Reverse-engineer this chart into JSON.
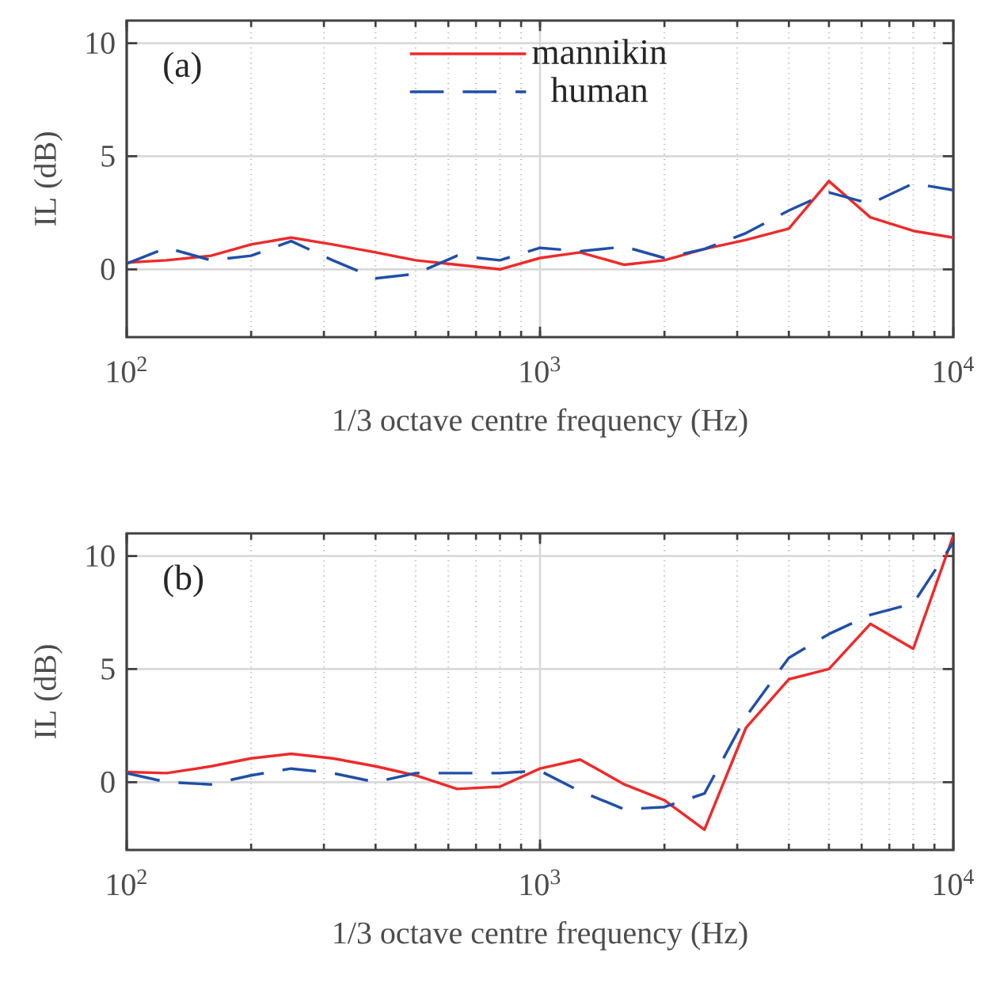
{
  "chart_data": [
    {
      "type": "line",
      "x": [
        100,
        125,
        160,
        200,
        250,
        315,
        400,
        500,
        630,
        800,
        1000,
        1250,
        1600,
        2000,
        2500,
        3150,
        4000,
        5000,
        6300,
        8000,
        10000
      ],
      "series": [
        {
          "name": "mannikin",
          "color": "#ee2a2a",
          "line_style": "solid",
          "values": [
            0.3,
            0.4,
            0.6,
            1.1,
            1.4,
            1.1,
            0.75,
            0.4,
            0.2,
            0,
            0.5,
            0.75,
            0.2,
            0.4,
            0.9,
            1.3,
            1.8,
            3.9,
            2.3,
            1.7,
            1.4
          ]
        },
        {
          "name": "human",
          "color": "#1f4fa8",
          "line_style": "dashed",
          "values": [
            0.25,
            0.95,
            0.4,
            0.6,
            1.25,
            0.4,
            -0.4,
            -0.2,
            0.6,
            0.4,
            0.95,
            0.8,
            1.0,
            0.5,
            0.9,
            1.6,
            2.6,
            3.4,
            2.9,
            3.8,
            3.5
          ]
        }
      ],
      "xlabel": "1/3 octave centre frequency (Hz)",
      "ylabel": "IL (dB)",
      "log": "x",
      "xlim": [
        100,
        10000
      ],
      "ylim": [
        -3,
        11
      ],
      "xticks": [
        {
          "value": 100,
          "label": "10$^{2}$"
        },
        {
          "value": 1000,
          "label": "10$^{3}$"
        },
        {
          "value": 10000,
          "label": "10$^{4}$"
        }
      ],
      "yticks": [
        0,
        5,
        10
      ],
      "grid": true,
      "legend": "top",
      "annotations": [
        "(a)"
      ]
    },
    {
      "type": "line",
      "x": [
        100,
        125,
        160,
        200,
        250,
        315,
        400,
        500,
        630,
        800,
        1000,
        1250,
        1600,
        2000,
        2500,
        3150,
        4000,
        5000,
        6300,
        8000,
        10000
      ],
      "series": [
        {
          "color": "#ee2a2a",
          "line_style": "solid",
          "values": [
            0.45,
            0.4,
            0.7,
            1.05,
            1.25,
            1.05,
            0.7,
            0.3,
            -0.3,
            -0.2,
            0.6,
            1.0,
            -0.1,
            -0.8,
            -2.1,
            2.4,
            4.55,
            5.0,
            7.0,
            5.9,
            10.9
          ]
        },
        {
          "color": "#1f4fa8",
          "line_style": "dashed",
          "values": [
            0.4,
            0,
            -0.1,
            0.3,
            0.6,
            0.4,
            0,
            0.4,
            0.4,
            0.4,
            0.5,
            -0.4,
            -1.2,
            -1.1,
            -0.5,
            2.9,
            5.5,
            6.55,
            7.4,
            7.9,
            10.6
          ]
        }
      ],
      "xlabel": "1/3 octave centre frequency (Hz)",
      "ylabel": "IL (dB)",
      "log": "x",
      "xlim": [
        100,
        10000
      ],
      "ylim": [
        -3,
        11
      ],
      "xticks": [
        {
          "value": 100,
          "label": "10$^{2}$"
        },
        {
          "value": 1000,
          "label": "10$^{3}$"
        },
        {
          "value": 10000,
          "label": "10$^{4}$"
        }
      ],
      "yticks": [
        0,
        5,
        10
      ],
      "grid": true,
      "annotations": [
        "(b)"
      ]
    }
  ]
}
